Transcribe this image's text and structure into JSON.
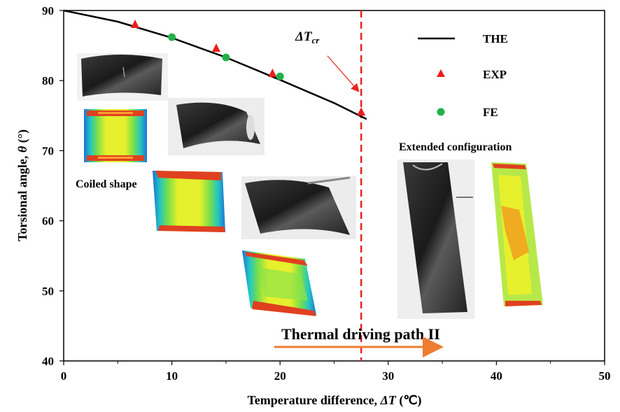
{
  "chart_data": {
    "type": "scatter",
    "xlabel": "Temperature difference, ",
    "xlabel_var": "ΔT",
    "xlabel_unit": " (℃)",
    "ylabel": "Torsional  angle, ",
    "ylabel_var": "θ",
    "ylabel_unit": " (°)",
    "xlim": [
      0,
      50
    ],
    "ylim": [
      40,
      90
    ],
    "x_ticks": [
      "0",
      "10",
      "20",
      "30",
      "40",
      "50"
    ],
    "y_ticks": [
      "40",
      "50",
      "60",
      "70",
      "80",
      "90"
    ],
    "grid": false,
    "legend_position": "top-right",
    "series": [
      {
        "name": "THE",
        "kind": "line",
        "color": "#000000",
        "x": [
          0,
          5,
          10,
          15,
          20,
          25,
          28
        ],
        "y": [
          90,
          88.4,
          86.1,
          83.3,
          80.1,
          76.8,
          74.5
        ]
      },
      {
        "name": "EXP",
        "kind": "triangle",
        "color": "#ee1c1c",
        "x": [
          6.6,
          14.1,
          19.3,
          27.5
        ],
        "y": [
          88.0,
          84.6,
          81.0,
          75.5
        ]
      },
      {
        "name": "FE",
        "kind": "circle",
        "color": "#22b14c",
        "x": [
          10.0,
          15.0,
          20.0
        ],
        "y": [
          86.2,
          83.3,
          80.6
        ]
      }
    ],
    "critical_line": {
      "x": 27.5,
      "color": "#e8241f"
    },
    "annotations": {
      "dtcr_main": "ΔT",
      "dtcr_sub": "cr",
      "coiled": "Coiled shape",
      "extended": "Extended configuration",
      "path": "Thermal driving path II",
      "path_color": "#ed7d31"
    }
  }
}
